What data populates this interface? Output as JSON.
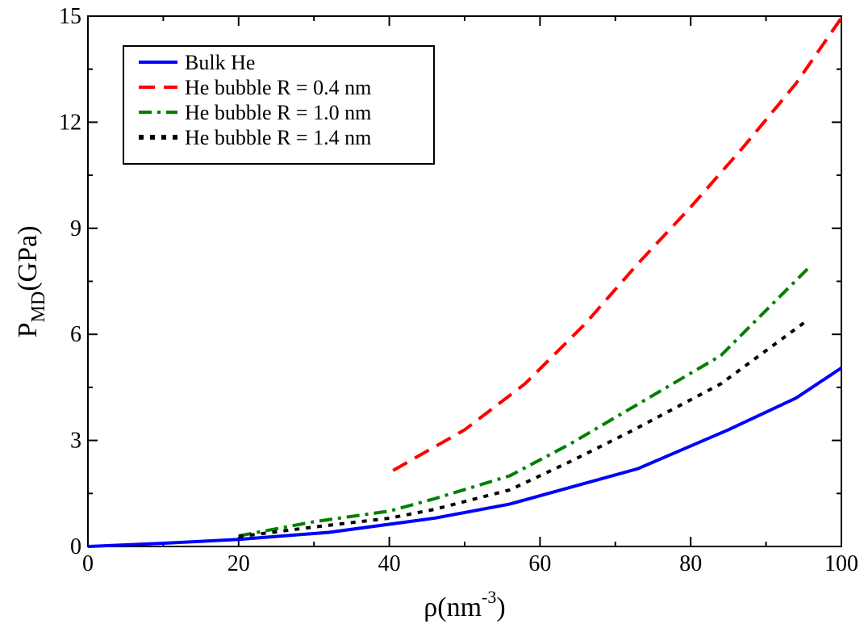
{
  "chart_data": {
    "type": "line",
    "title": "",
    "xlabel": {
      "base": "ρ(nm",
      "sup": "-3",
      "close": ")"
    },
    "ylabel": {
      "base": "P",
      "sub": "MD",
      "rest": "(GPa)"
    },
    "xlim": [
      0,
      100
    ],
    "ylim": [
      0,
      15
    ],
    "x_ticks": [
      0,
      20,
      40,
      60,
      80,
      100
    ],
    "y_ticks": [
      0,
      3,
      6,
      9,
      12,
      15
    ],
    "x_tick_labels": [
      "0",
      "20",
      "40",
      "60",
      "80",
      "100"
    ],
    "y_tick_labels": [
      "0",
      "3",
      "6",
      "9",
      "12",
      "15"
    ],
    "grid": false,
    "legend_position": "top-left",
    "series": [
      {
        "name": "Bulk He",
        "color": "#0000ff",
        "style": "solid",
        "x": [
          0,
          10,
          20,
          32,
          46,
          56,
          73,
          85,
          94,
          100
        ],
        "y": [
          0,
          0.09,
          0.2,
          0.4,
          0.8,
          1.2,
          2.2,
          3.3,
          4.2,
          5.05
        ]
      },
      {
        "name": "He bubble R = 0.4 nm",
        "color": "#ff0000",
        "style": "dashed",
        "x": [
          40.5,
          50,
          58,
          66,
          73,
          80,
          87,
          94,
          100
        ],
        "y": [
          2.15,
          3.3,
          4.6,
          6.3,
          8.0,
          9.6,
          11.3,
          13.1,
          14.95
        ]
      },
      {
        "name": "He bubble R = 1.0 nm",
        "color": "#008000",
        "style": "dashdot",
        "x": [
          20,
          30,
          40,
          46,
          56,
          64,
          72,
          84,
          95.5
        ],
        "y": [
          0.3,
          0.7,
          1.0,
          1.35,
          2.0,
          2.9,
          3.9,
          5.4,
          7.85
        ]
      },
      {
        "name": "He bubble R = 1.4 nm",
        "color": "#000000",
        "style": "dotted",
        "x": [
          20,
          30,
          40,
          46,
          56,
          64,
          72,
          84,
          95.5
        ],
        "y": [
          0.28,
          0.55,
          0.8,
          1.05,
          1.6,
          2.4,
          3.25,
          4.6,
          6.4
        ]
      }
    ]
  }
}
